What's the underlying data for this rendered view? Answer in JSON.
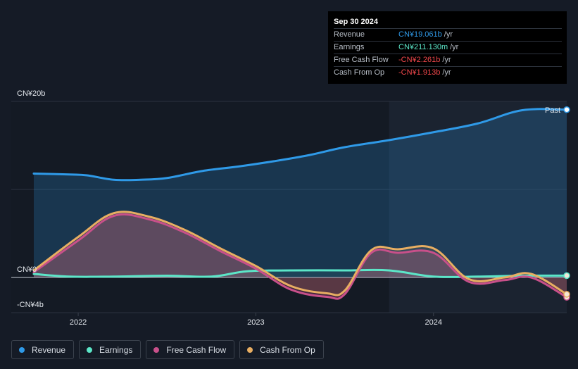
{
  "tooltip": {
    "date": "Sep 30 2024",
    "rows": [
      {
        "label": "Revenue",
        "value": "CN¥19.061b",
        "unit": "/yr",
        "color": "#2f9ae8"
      },
      {
        "label": "Earnings",
        "value": "CN¥211.130m",
        "unit": "/yr",
        "color": "#5ce6c8"
      },
      {
        "label": "Free Cash Flow",
        "value": "-CN¥2.261b",
        "unit": "/yr",
        "color": "#f0474b"
      },
      {
        "label": "Cash From Op",
        "value": "-CN¥1.913b",
        "unit": "/yr",
        "color": "#f0474b"
      }
    ]
  },
  "past_label": "Past",
  "legend": [
    {
      "name": "Revenue",
      "color": "#2f9ae8"
    },
    {
      "name": "Earnings",
      "color": "#5ce6c8"
    },
    {
      "name": "Free Cash Flow",
      "color": "#c8508a"
    },
    {
      "name": "Cash From Op",
      "color": "#e8ae62"
    }
  ],
  "chart_data": {
    "type": "area",
    "y_tick_labels": [
      "CN¥20b",
      "CN¥0",
      "-CN¥4b"
    ],
    "y_ticks": [
      20,
      0,
      -4
    ],
    "ylim": [
      -4,
      20
    ],
    "x_tick_labels": [
      "2022",
      "2023",
      "2024"
    ],
    "x_ticks": [
      2022.0,
      2023.0,
      2024.0
    ],
    "xlim": [
      2021.72,
      2024.75
    ],
    "highlight_start": 2023.75,
    "series": [
      {
        "name": "Revenue",
        "color": "#2f9ae8",
        "x": [
          2021.75,
          2021.95,
          2022.05,
          2022.2,
          2022.35,
          2022.5,
          2022.7,
          2022.9,
          2023.1,
          2023.3,
          2023.5,
          2023.75,
          2024.0,
          2024.25,
          2024.5,
          2024.75
        ],
        "y": [
          11.8,
          11.7,
          11.6,
          11.1,
          11.1,
          11.3,
          12.1,
          12.6,
          13.2,
          13.9,
          14.8,
          15.6,
          16.5,
          17.5,
          19.0,
          19.06
        ]
      },
      {
        "name": "Earnings",
        "color": "#5ce6c8",
        "x": [
          2021.75,
          2021.95,
          2022.2,
          2022.5,
          2022.75,
          2022.95,
          2023.2,
          2023.5,
          2023.75,
          2024.0,
          2024.25,
          2024.5,
          2024.75
        ],
        "y": [
          0.4,
          0.1,
          0.1,
          0.2,
          0.1,
          0.7,
          0.8,
          0.8,
          0.8,
          0.1,
          0.1,
          0.2,
          0.21
        ]
      },
      {
        "name": "Free Cash Flow",
        "color": "#c8508a",
        "x": [
          2021.75,
          2022.0,
          2022.2,
          2022.4,
          2022.6,
          2022.8,
          2023.0,
          2023.2,
          2023.4,
          2023.5,
          2023.65,
          2023.8,
          2024.0,
          2024.2,
          2024.4,
          2024.55,
          2024.75
        ],
        "y": [
          0.6,
          4.2,
          7.0,
          6.6,
          5.1,
          3.0,
          1.0,
          -1.4,
          -2.2,
          -1.9,
          2.8,
          2.8,
          2.8,
          -0.5,
          -0.3,
          0.0,
          -2.26
        ]
      },
      {
        "name": "Cash From Op",
        "color": "#e8ae62",
        "x": [
          2021.75,
          2022.0,
          2022.2,
          2022.4,
          2022.6,
          2022.8,
          2023.0,
          2023.2,
          2023.4,
          2023.5,
          2023.65,
          2023.8,
          2024.0,
          2024.2,
          2024.4,
          2024.55,
          2024.75
        ],
        "y": [
          0.8,
          4.6,
          7.3,
          6.9,
          5.4,
          3.3,
          1.3,
          -1.0,
          -1.8,
          -1.5,
          3.1,
          3.2,
          3.3,
          -0.2,
          0.0,
          0.4,
          -1.91
        ]
      }
    ]
  }
}
